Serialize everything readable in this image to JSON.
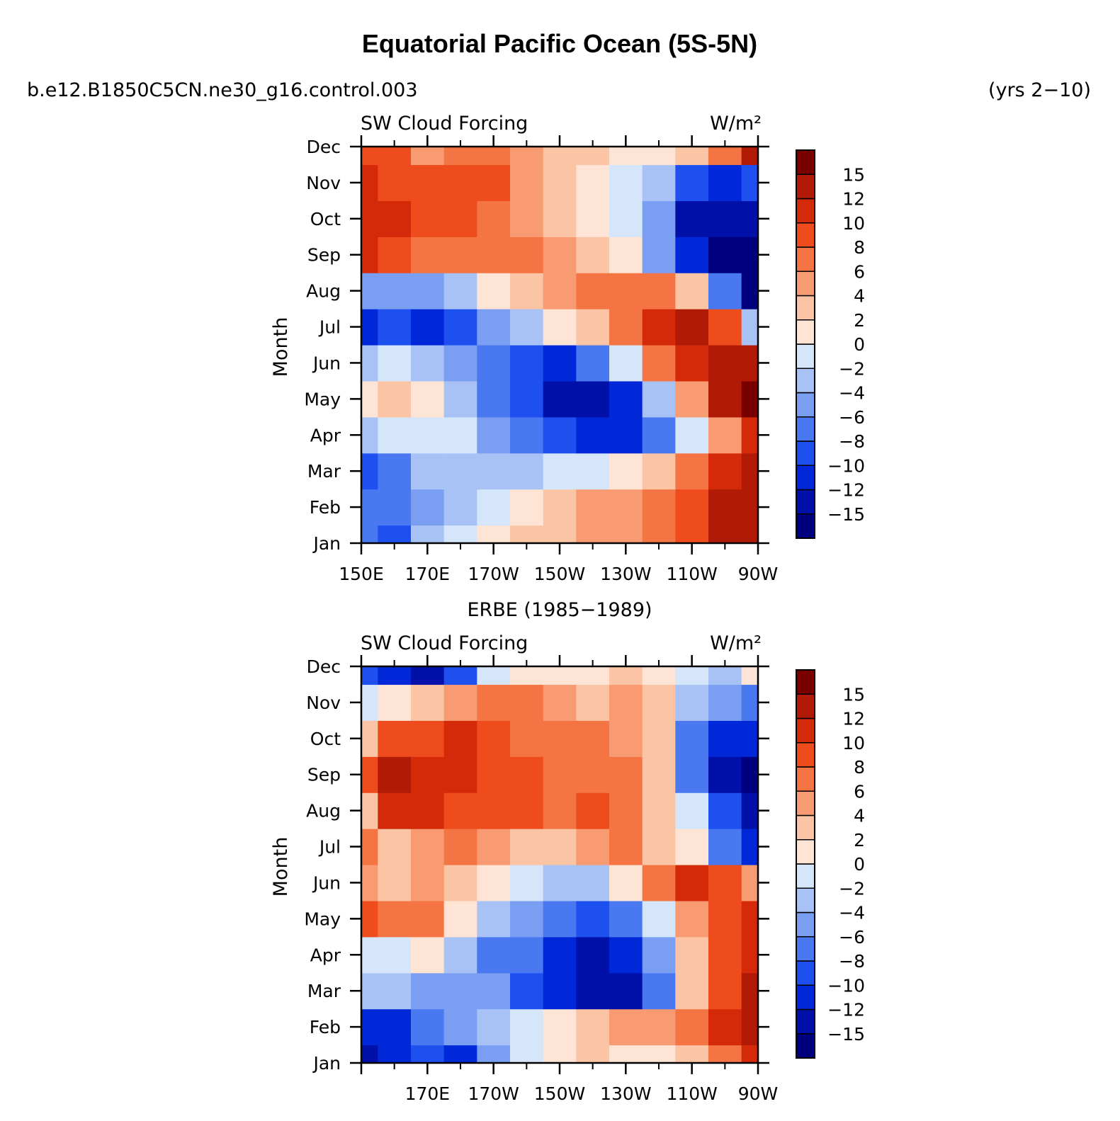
{
  "figure": {
    "title": "Equatorial Pacific Ocean (5S-5N)",
    "case_name": "b.e12.B1850C5CN.ne30_g16.control.003",
    "years_label": "(yrs 2−10)"
  },
  "chart_data": [
    {
      "type": "heatmap",
      "subtitle": "",
      "left_label": "SW Cloud Forcing",
      "units_label": "W/m²",
      "ylabel": "Month",
      "x_tick_labels": [
        "150E",
        "170E",
        "170W",
        "150W",
        "130W",
        "110W",
        "90W"
      ],
      "x_tick_lons": [
        150,
        170,
        190,
        210,
        230,
        250,
        270
      ],
      "xlim": [
        150,
        270
      ],
      "y_tick_labels": [
        "Jan",
        "Feb",
        "Mar",
        "Apr",
        "May",
        "Jun",
        "Jul",
        "Aug",
        "Sep",
        "Oct",
        "Nov",
        "Dec"
      ],
      "lons": [
        150,
        160,
        170,
        180,
        190,
        200,
        210,
        220,
        230,
        240,
        250,
        260,
        270
      ],
      "values": [
        [
          -8,
          -9,
          -4,
          -2,
          0,
          2,
          3,
          4,
          5,
          6,
          8,
          12,
          13
        ],
        [
          -7,
          -7,
          -5,
          -3,
          -1,
          1,
          3,
          4,
          5,
          6,
          8,
          12,
          13
        ],
        [
          -9,
          -8,
          -4,
          -3,
          -3,
          -3,
          -2,
          -1,
          1,
          3,
          6,
          10,
          13
        ],
        [
          -3,
          -2,
          -1,
          -2,
          -5,
          -8,
          -10,
          -11,
          -11,
          -8,
          -2,
          5,
          10
        ],
        [
          1,
          2,
          0,
          -3,
          -7,
          -10,
          -13,
          -13,
          -12,
          -4,
          5,
          12,
          15
        ],
        [
          -4,
          -2,
          -4,
          -6,
          -8,
          -10,
          -11,
          -8,
          -2,
          6,
          11,
          13,
          14
        ],
        [
          -11,
          -9,
          -11,
          -9,
          -6,
          -3,
          0,
          3,
          7,
          11,
          12,
          9,
          -3
        ],
        [
          -6,
          -5,
          -5,
          -3,
          0,
          3,
          5,
          7,
          7,
          6,
          2,
          -8,
          -16
        ],
        [
          11,
          9,
          7,
          6,
          6,
          6,
          5,
          3,
          0,
          -5,
          -12,
          -16,
          -16
        ],
        [
          11,
          10,
          9,
          9,
          7,
          5,
          3,
          0,
          -2,
          -6,
          -13,
          -15,
          -14
        ],
        [
          10,
          9,
          8,
          9,
          8,
          4,
          3,
          1,
          -1,
          -3,
          -9,
          -11,
          -9
        ],
        [
          9,
          8,
          5,
          7,
          7,
          4,
          3,
          2,
          1,
          1,
          2,
          6,
          12
        ]
      ],
      "colorbar_labels": [
        "15",
        "12",
        "10",
        "8",
        "6",
        "4",
        "2",
        "0",
        "−2",
        "−4",
        "−6",
        "−8",
        "−10",
        "−12",
        "−15"
      ],
      "levels": [
        -15,
        -12,
        -10,
        -8,
        -6,
        -4,
        -2,
        0,
        2,
        4,
        6,
        8,
        10,
        12,
        15
      ],
      "colors": [
        "#00007f",
        "#0010a8",
        "#0028d8",
        "#1e50f0",
        "#4a78f0",
        "#7a9ef2",
        "#a9c2f6",
        "#d5e5fa",
        "#fde4d4",
        "#fbc4a4",
        "#f89a72",
        "#f57444",
        "#ee4c1c",
        "#d52a0a",
        "#b01a06",
        "#7a0000"
      ]
    },
    {
      "type": "heatmap",
      "subtitle": "ERBE (1985−1989)",
      "left_label": "SW Cloud Forcing",
      "units_label": "W/m²",
      "ylabel": "Month",
      "x_tick_labels": [
        "170E",
        "170W",
        "150W",
        "130W",
        "110W",
        "90W"
      ],
      "x_tick_lons": [
        170,
        190,
        210,
        230,
        250,
        270
      ],
      "xlim": [
        150,
        270
      ],
      "y_tick_labels": [
        "Jan",
        "Feb",
        "Mar",
        "Apr",
        "May",
        "Jun",
        "Jul",
        "Aug",
        "Sep",
        "Oct",
        "Nov",
        "Dec"
      ],
      "lons": [
        150,
        160,
        170,
        180,
        190,
        200,
        210,
        220,
        230,
        240,
        250,
        260,
        270
      ],
      "values": [
        [
          -13,
          -12,
          -10,
          -12,
          -5,
          -2,
          1,
          2,
          1,
          0,
          2,
          6,
          10
        ],
        [
          -12,
          -11,
          -8,
          -6,
          -4,
          -1,
          0,
          2,
          4,
          5,
          7,
          10,
          12
        ],
        [
          -3,
          -4,
          -5,
          -5,
          -5,
          -9,
          -11,
          -14,
          -13,
          -8,
          3,
          9,
          13
        ],
        [
          -2,
          -2,
          0,
          -4,
          -8,
          -7,
          -11,
          -13,
          -12,
          -5,
          2,
          9,
          10
        ],
        [
          9,
          7,
          6,
          1,
          -4,
          -5,
          -8,
          -9,
          -7,
          -2,
          5,
          9,
          11
        ],
        [
          4,
          3,
          5,
          2,
          0,
          -2,
          -4,
          -3,
          1,
          6,
          10,
          9,
          4
        ],
        [
          6,
          2,
          4,
          6,
          5,
          3,
          3,
          5,
          7,
          3,
          0,
          -8,
          -12
        ],
        [
          3,
          10,
          10,
          9,
          8,
          8,
          7,
          8,
          6,
          2,
          -2,
          -10,
          -14
        ],
        [
          9,
          12,
          11,
          11,
          9,
          8,
          7,
          7,
          6,
          2,
          -7,
          -14,
          -16
        ],
        [
          3,
          8,
          9,
          10,
          8,
          7,
          7,
          6,
          5,
          2,
          -8,
          -11,
          -11
        ],
        [
          -2,
          1,
          3,
          5,
          6,
          6,
          4,
          3,
          4,
          2,
          -4,
          -6,
          -8
        ],
        [
          -10,
          -12,
          -13,
          -10,
          -2,
          0,
          1,
          0,
          2,
          1,
          -2,
          -4,
          1
        ]
      ],
      "colorbar_labels": [
        "15",
        "12",
        "10",
        "8",
        "6",
        "4",
        "2",
        "0",
        "−2",
        "−4",
        "−6",
        "−8",
        "−10",
        "−12",
        "−15"
      ],
      "levels": [
        -15,
        -12,
        -10,
        -8,
        -6,
        -4,
        -2,
        0,
        2,
        4,
        6,
        8,
        10,
        12,
        15
      ],
      "colors": [
        "#00007f",
        "#0010a8",
        "#0028d8",
        "#1e50f0",
        "#4a78f0",
        "#7a9ef2",
        "#a9c2f6",
        "#d5e5fa",
        "#fde4d4",
        "#fbc4a4",
        "#f89a72",
        "#f57444",
        "#ee4c1c",
        "#d52a0a",
        "#b01a06",
        "#7a0000"
      ]
    }
  ]
}
